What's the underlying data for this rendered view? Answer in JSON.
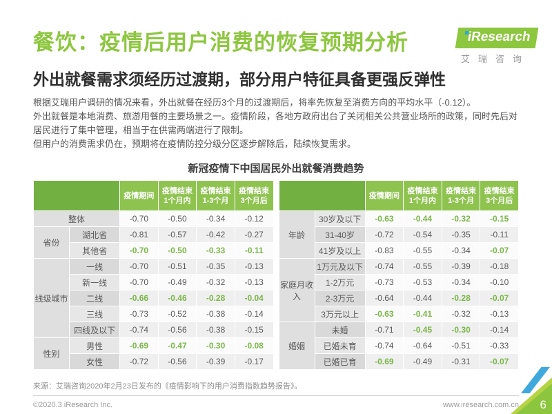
{
  "colors": {
    "brand_green": "#8dc63f",
    "header_green": "#8fc350",
    "header_green_dark": "#72b041",
    "value_green": "#7ab648",
    "accent_blue": "#3fa9dd"
  },
  "header": {
    "title": "餐饮：疫情后用户消费的恢复预期分析",
    "subtitle": "外出就餐需求须经历过渡期，部分用户特征具备更强反弹性",
    "logo": {
      "brand": "iResearch",
      "cn": "艾瑞咨询"
    }
  },
  "body": {
    "paragraphs": [
      "根据艾瑞用户调研的情况来看，外出就餐在经历3个月的过渡期后，将率先恢复至消费方向的平均水平（-0.12）。",
      "外出就餐是本地消费、旅游用餐的主要场景之一。疫情阶段，各地方政府出台了关闭相关公共营业场所的政策，同时先后对居民进行了集中管理，相当于在供需两端进行了限制。",
      "但用户的消费需求仍在，预期将在疫情防控分级分区逐步解除后，陆续恢复需求。"
    ],
    "table_title": "新冠疫情下中国居民外出就餐消费趋势"
  },
  "table": {
    "headers": [
      "疫情期间",
      "疫情结束\n1个月内",
      "疫情结束\n1-3个月",
      "疫情结束\n3个月后"
    ],
    "sides": [
      {
        "rows": [
          {
            "group": "整体",
            "group_colspan": 2,
            "values": [
              "-0.70",
              "-0.50",
              "-0.34",
              "-0.12"
            ],
            "green": [
              0,
              0,
              0,
              0
            ]
          },
          {
            "group": "省份",
            "group_rowspan": 2,
            "label": "湖北省",
            "values": [
              "-0.81",
              "-0.57",
              "-0.42",
              "-0.27"
            ],
            "green": [
              0,
              0,
              0,
              0
            ]
          },
          {
            "label": "其他省",
            "values": [
              "-0.70",
              "-0.50",
              "-0.33",
              "-0.11"
            ],
            "green": [
              1,
              1,
              1,
              1
            ]
          },
          {
            "group": "线级城市",
            "group_rowspan": 5,
            "label": "一线",
            "values": [
              "-0.70",
              "-0.51",
              "-0.35",
              "-0.13"
            ],
            "green": [
              0,
              0,
              0,
              0
            ]
          },
          {
            "label": "新一线",
            "values": [
              "-0.70",
              "-0.49",
              "-0.32",
              "-0.13"
            ],
            "green": [
              0,
              0,
              0,
              0
            ]
          },
          {
            "label": "二线",
            "values": [
              "-0.66",
              "-0.46",
              "-0.28",
              "-0.04"
            ],
            "green": [
              1,
              1,
              1,
              1
            ]
          },
          {
            "label": "三线",
            "values": [
              "-0.73",
              "-0.52",
              "-0.38",
              "-0.14"
            ],
            "green": [
              0,
              0,
              0,
              0
            ]
          },
          {
            "label": "四线及以下",
            "values": [
              "-0.74",
              "-0.56",
              "-0.38",
              "-0.15"
            ],
            "green": [
              0,
              0,
              0,
              0
            ]
          },
          {
            "group": "性别",
            "group_rowspan": 2,
            "label": "男性",
            "values": [
              "-0.69",
              "-0.47",
              "-0.30",
              "-0.08"
            ],
            "green": [
              1,
              1,
              1,
              1
            ]
          },
          {
            "label": "女性",
            "values": [
              "-0.72",
              "-0.56",
              "-0.39",
              "-0.17"
            ],
            "green": [
              0,
              0,
              0,
              0
            ]
          }
        ]
      },
      {
        "rows": [
          {
            "group": "年龄",
            "group_rowspan": 3,
            "label": "30岁及以下",
            "values": [
              "-0.63",
              "-0.44",
              "-0.32",
              "-0.15"
            ],
            "green": [
              1,
              1,
              1,
              1
            ]
          },
          {
            "label": "31-40岁",
            "values": [
              "-0.72",
              "-0.54",
              "-0.35",
              "-0.11"
            ],
            "green": [
              0,
              0,
              0,
              0
            ]
          },
          {
            "label": "41岁及以上",
            "values": [
              "-0.83",
              "-0.55",
              "-0.34",
              "-0.07"
            ],
            "green": [
              0,
              0,
              0,
              1
            ]
          },
          {
            "group": "家庭月收入",
            "group_rowspan": 4,
            "label": "1万元及以下",
            "values": [
              "-0.74",
              "-0.55",
              "-0.39",
              "-0.18"
            ],
            "green": [
              0,
              0,
              0,
              0
            ]
          },
          {
            "label": "1-2万元",
            "values": [
              "-0.73",
              "-0.53",
              "-0.34",
              "-0.10"
            ],
            "green": [
              0,
              0,
              0,
              0
            ]
          },
          {
            "label": "2-3万元",
            "values": [
              "-0.64",
              "-0.44",
              "-0.28",
              "-0.07"
            ],
            "green": [
              0,
              0,
              1,
              1
            ]
          },
          {
            "label": "3万元以上",
            "values": [
              "-0.63",
              "-0.41",
              "-0.32",
              "-0.13"
            ],
            "green": [
              1,
              1,
              0,
              0
            ]
          },
          {
            "group": "婚姻",
            "group_rowspan": 3,
            "label": "未婚",
            "values": [
              "-0.71",
              "-0.45",
              "-0.30",
              "-0.14"
            ],
            "green": [
              0,
              1,
              1,
              0
            ]
          },
          {
            "label": "已婚未育",
            "values": [
              "-0.74",
              "-0.64",
              "-0.51",
              "-0.33"
            ],
            "green": [
              0,
              0,
              0,
              0
            ]
          },
          {
            "label": "已婚已育",
            "values": [
              "-0.69",
              "-0.49",
              "-0.31",
              "-0.07"
            ],
            "green": [
              1,
              0,
              0,
              1
            ]
          }
        ]
      }
    ]
  },
  "footer": {
    "source": "来源：艾瑞咨询2020年2月23日发布的《疫情影响下的用户消费指数趋势报告》。",
    "copyright": "©2020.3 iResearch Inc.",
    "website": "www.iresearch.com.cn",
    "page_number": "6"
  }
}
